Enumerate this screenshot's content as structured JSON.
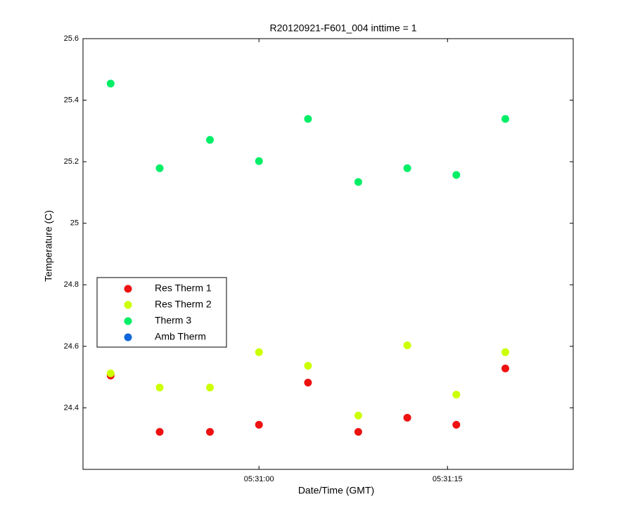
{
  "chart_data": {
    "type": "scatter",
    "title": "R20120921-F601_004 inttime = 1",
    "x_label": "Date/Time (GMT)",
    "y_label": "Temperature (C)",
    "x": [
      19848.2,
      19852.1,
      19856.1,
      19860.0,
      19863.9,
      19867.9,
      19871.8,
      19875.7,
      19879.6
    ],
    "series": [
      {
        "name": "Res Therm 1",
        "color": "#ee1111",
        "values": [
          24.505,
          24.322,
          24.322,
          24.345,
          24.482,
          24.322,
          24.368,
          24.345,
          24.528
        ]
      },
      {
        "name": "Res Therm 2",
        "color": "#ccff00",
        "values": [
          24.512,
          24.466,
          24.466,
          24.581,
          24.537,
          24.375,
          24.603,
          24.443,
          24.581
        ]
      },
      {
        "name": "Therm 3",
        "color": "#00ee66",
        "values": [
          25.454,
          25.179,
          25.271,
          25.202,
          25.339,
          25.134,
          25.179,
          25.157,
          25.339
        ]
      },
      {
        "name": "Amb Therm",
        "color": "#1166dd",
        "values": [
          null,
          null,
          null,
          null,
          null,
          null,
          null,
          null,
          null
        ]
      }
    ],
    "xlim": [
      19846,
      19885
    ],
    "xticks": [
      {
        "value": 19860,
        "label": "05:31:00"
      },
      {
        "value": 19875,
        "label": "05:31:15"
      }
    ],
    "ylim": [
      24.2,
      25.6
    ],
    "yticks": [
      24.4,
      24.6,
      24.8,
      25,
      25.2,
      25.4,
      25.6
    ],
    "legend": "left"
  }
}
